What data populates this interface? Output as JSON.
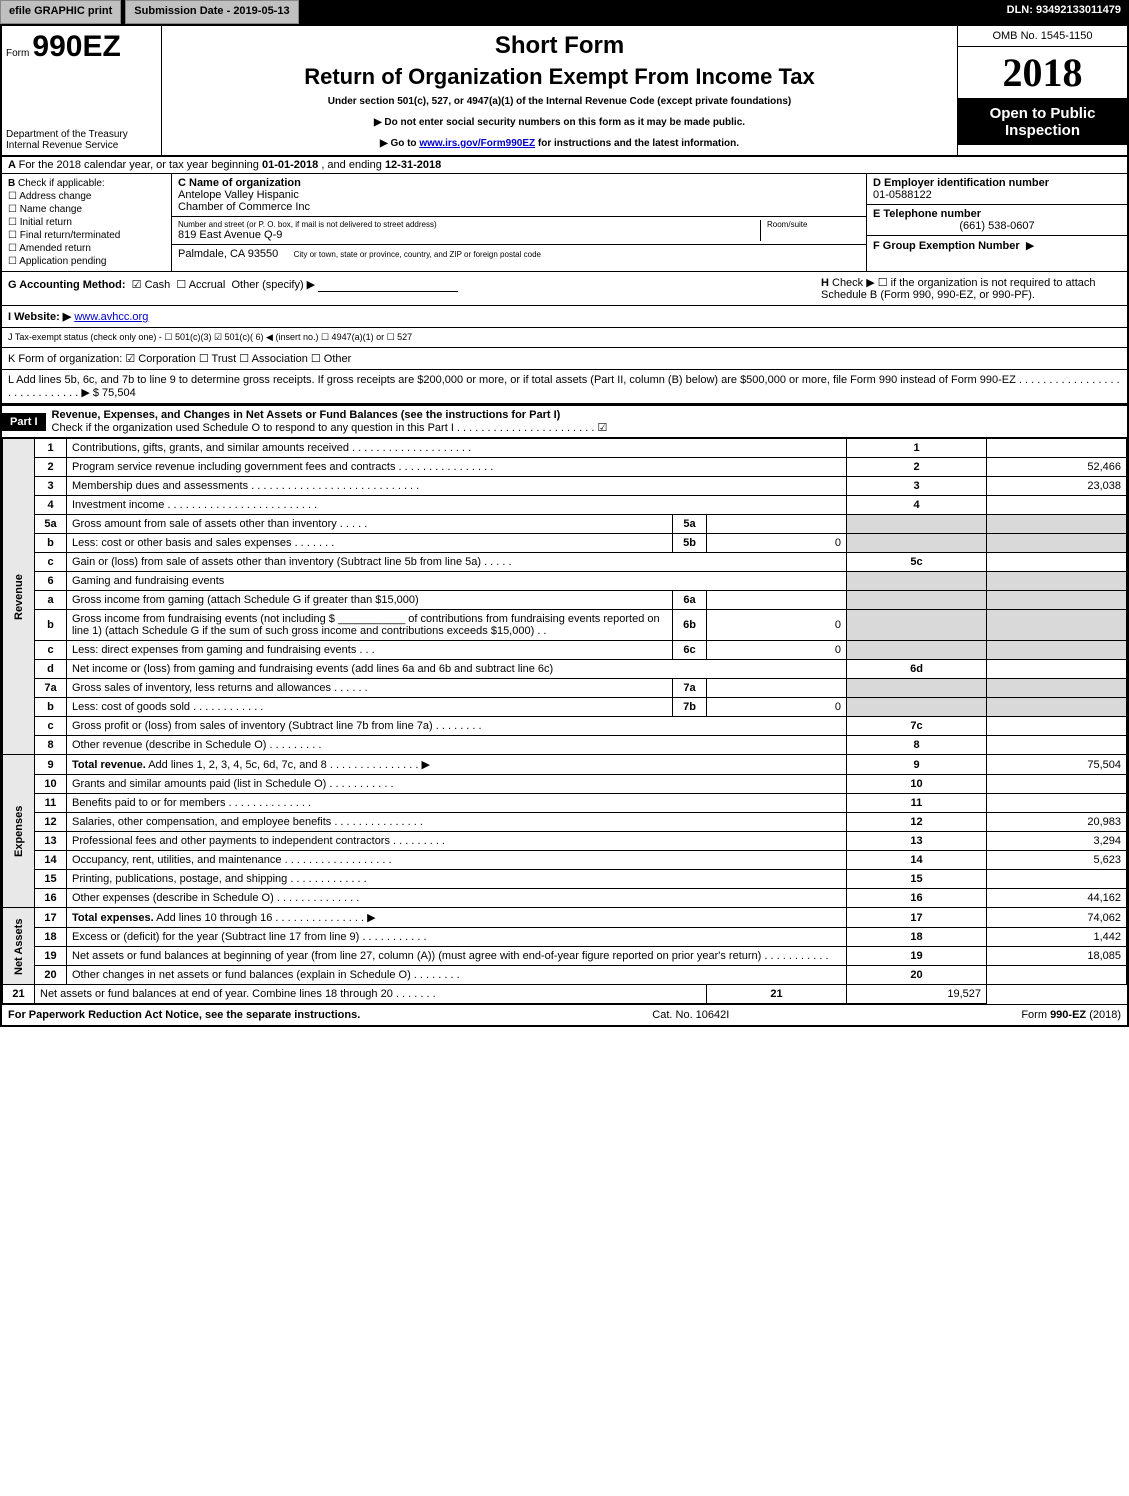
{
  "topbar": {
    "efile": "efile GRAPHIC print",
    "submission": "Submission Date - 2019-05-13",
    "dln": "DLN: 93492133011479"
  },
  "header": {
    "form_prefix": "Form",
    "form_num": "990EZ",
    "short": "Short Form",
    "title": "Return of Organization Exempt From Income Tax",
    "under": "Under section 501(c), 527, or 4947(a)(1) of the Internal Revenue Code (except private foundations)",
    "arrow1": "▶ Do not enter social security numbers on this form as it may be made public.",
    "arrow2_pre": "▶ Go to ",
    "arrow2_link": "www.irs.gov/Form990EZ",
    "arrow2_post": " for instructions and the latest information.",
    "dept1": "Department of the Treasury",
    "dept2": "Internal Revenue Service",
    "omb": "OMB No. 1545-1150",
    "year": "2018",
    "open1": "Open to Public",
    "open2": "Inspection"
  },
  "A": {
    "text_pre": "For the 2018 calendar year, or tax year beginning ",
    "begin": "01-01-2018",
    "mid": ", and ending ",
    "end": "12-31-2018"
  },
  "B": {
    "label": "Check if applicable:",
    "items": [
      "Address change",
      "Name change",
      "Initial return",
      "Final return/terminated",
      "Amended return",
      "Application pending"
    ]
  },
  "C": {
    "label": "C Name of organization",
    "name1": "Antelope Valley Hispanic",
    "name2": "Chamber of Commerce Inc",
    "street_label": "Number and street (or P. O. box, if mail is not delivered to street address)",
    "room_label": "Room/suite",
    "street": "819 East Avenue Q-9",
    "city_label": "City or town, state or province, country, and ZIP or foreign postal code",
    "city": "Palmdale, CA  93550"
  },
  "D": {
    "label": "D Employer identification number",
    "value": "01-0588122"
  },
  "E": {
    "label": "E Telephone number",
    "value": "(661) 538-0607"
  },
  "F": {
    "label": "F Group Exemption Number",
    "arrow": "▶"
  },
  "G": {
    "label": "G Accounting Method:",
    "cash": "Cash",
    "accrual": "Accrual",
    "other": "Other (specify) ▶"
  },
  "H": {
    "text": "Check ▶ ☐ if the organization is not required to attach Schedule B (Form 990, 990-EZ, or 990-PF)."
  },
  "I": {
    "label": "I Website: ▶",
    "value": "www.avhcc.org"
  },
  "J": {
    "text": "J Tax-exempt status (check only one) - ☐ 501(c)(3) ☑ 501(c)( 6) ◀ (insert no.) ☐ 4947(a)(1) or ☐ 527"
  },
  "K": {
    "text": "K Form of organization: ☑ Corporation  ☐ Trust  ☐ Association  ☐ Other"
  },
  "L": {
    "text": "L Add lines 5b, 6c, and 7b to line 9 to determine gross receipts. If gross receipts are $200,000 or more, or if total assets (Part II, column (B) below) are $500,000 or more, file Form 990 instead of Form 990-EZ  .  .  .  .  .  .  .  .  .  .  .  .  .  .  .  .  .  .  .  .  .  .  .  .  .  .  .  .  .  ▶ $ ",
    "value": "75,504"
  },
  "part1": {
    "bar": "Part I",
    "title": "Revenue, Expenses, and Changes in Net Assets or Fund Balances (see the instructions for Part I)",
    "check": "Check if the organization used Schedule O to respond to any question in this Part I .  .  .  .  .  .  .  .  .  .  .  .  .  .  .  .  .  .  .  .  .  .  .  ☑"
  },
  "sections": {
    "revenue": "Revenue",
    "expenses": "Expenses",
    "netassets": "Net Assets"
  },
  "rows": [
    {
      "n": "1",
      "d": "Contributions, gifts, grants, and similar amounts received  .  .  .  .  .  .  .  .  .  .  .  .  .  .  .  .  .  .  .  .",
      "b": "1",
      "a": ""
    },
    {
      "n": "2",
      "d": "Program service revenue including government fees and contracts  .  .  .  .  .  .  .  .  .  .  .  .  .  .  .  .",
      "b": "2",
      "a": "52,466"
    },
    {
      "n": "3",
      "d": "Membership dues and assessments  .  .  .  .  .  .  .  .  .  .  .  .  .  .  .  .  .  .  .  .  .  .  .  .  .  .  .  .",
      "b": "3",
      "a": "23,038"
    },
    {
      "n": "4",
      "d": "Investment income  .  .  .  .  .  .  .  .  .  .  .  .  .  .  .  .  .  .  .  .  .  .  .  .  .",
      "b": "4",
      "a": ""
    },
    {
      "n": "5a",
      "d": "Gross amount from sale of assets other than inventory  .  .  .  .  .",
      "ib": "5a",
      "iv": ""
    },
    {
      "n": "b",
      "d": "Less: cost or other basis and sales expenses  .  .  .  .  .  .  .",
      "ib": "5b",
      "iv": "0"
    },
    {
      "n": "c",
      "d": "Gain or (loss) from sale of assets other than inventory (Subtract line 5b from line 5a)          .  .  .  .  .",
      "b": "5c",
      "a": ""
    },
    {
      "n": "6",
      "d": "Gaming and fundraising events",
      "shade": true
    },
    {
      "n": "a",
      "d": "Gross income from gaming (attach Schedule G if greater than $15,000)",
      "ib": "6a",
      "iv": ""
    },
    {
      "n": "b",
      "d": "Gross income from fundraising events (not including $ ___________ of contributions from fundraising events reported on line 1) (attach Schedule G if the sum of such gross income and contributions exceeds $15,000)          .  .",
      "ib": "6b",
      "iv": "0"
    },
    {
      "n": "c",
      "d": "Less: direct expenses from gaming and fundraising events          .  .  .",
      "ib": "6c",
      "iv": "0"
    },
    {
      "n": "d",
      "d": "Net income or (loss) from gaming and fundraising events (add lines 6a and 6b and subtract line 6c)",
      "b": "6d",
      "a": ""
    },
    {
      "n": "7a",
      "d": "Gross sales of inventory, less returns and allowances          .  .  .  .  .  .",
      "ib": "7a",
      "iv": ""
    },
    {
      "n": "b",
      "d": "Less: cost of goods sold                              .  .  .  .  .  .  .  .  .  .  .  .",
      "ib": "7b",
      "iv": "0"
    },
    {
      "n": "c",
      "d": "Gross profit or (loss) from sales of inventory (Subtract line 7b from line 7a)          .  .  .  .  .  .  .  .",
      "b": "7c",
      "a": ""
    },
    {
      "n": "8",
      "d": "Other revenue (describe in Schedule O)                                    .  .  .  .  .  .  .  .  .",
      "b": "8",
      "a": ""
    },
    {
      "n": "9",
      "d": "Total revenue. Add lines 1, 2, 3, 4, 5c, 6d, 7c, and 8          .  .  .  .  .  .  .  .  .  .  .  .  .  .  .  ▶",
      "b": "9",
      "a": "75,504",
      "bold": true
    },
    {
      "n": "10",
      "d": "Grants and similar amounts paid (list in Schedule O)                    .  .  .  .  .  .  .  .  .  .  .",
      "b": "10",
      "a": ""
    },
    {
      "n": "11",
      "d": "Benefits paid to or for members                              .  .  .  .  .  .  .  .  .  .  .  .  .  .",
      "b": "11",
      "a": ""
    },
    {
      "n": "12",
      "d": "Salaries, other compensation, and employee benefits          .  .  .  .  .  .  .  .  .  .  .  .  .  .  .",
      "b": "12",
      "a": "20,983"
    },
    {
      "n": "13",
      "d": "Professional fees and other payments to independent contractors                    .  .  .  .  .  .  .  .  .",
      "b": "13",
      "a": "3,294"
    },
    {
      "n": "14",
      "d": "Occupancy, rent, utilities, and maintenance          .  .  .  .  .  .  .  .  .  .  .  .  .  .  .  .  .  .",
      "b": "14",
      "a": "5,623"
    },
    {
      "n": "15",
      "d": "Printing, publications, postage, and shipping                    .  .  .  .  .  .  .  .  .  .  .  .  .",
      "b": "15",
      "a": ""
    },
    {
      "n": "16",
      "d": "Other expenses (describe in Schedule O)                    .  .  .  .  .  .  .  .  .  .  .  .  .  .",
      "b": "16",
      "a": "44,162"
    },
    {
      "n": "17",
      "d": "Total expenses. Add lines 10 through 16                    .  .  .  .  .  .  .  .  .  .  .  .  .  .  .  ▶",
      "b": "17",
      "a": "74,062",
      "bold": true
    },
    {
      "n": "18",
      "d": "Excess or (deficit) for the year (Subtract line 17 from line 9)                    .  .  .  .  .  .  .  .  .  .  .",
      "b": "18",
      "a": "1,442"
    },
    {
      "n": "19",
      "d": "Net assets or fund balances at beginning of year (from line 27, column (A)) (must agree with end-of-year figure reported on prior year's return)                    .  .  .  .  .  .  .  .  .  .  .",
      "b": "19",
      "a": "18,085"
    },
    {
      "n": "20",
      "d": "Other changes in net assets or fund balances (explain in Schedule O)                    .  .  .  .  .  .  .  .",
      "b": "20",
      "a": ""
    },
    {
      "n": "21",
      "d": "Net assets or fund balances at end of year. Combine lines 18 through 20                    .  .  .  .  .  .  .",
      "b": "21",
      "a": "19,527"
    }
  ],
  "footer": {
    "left": "For Paperwork Reduction Act Notice, see the separate instructions.",
    "mid": "Cat. No. 10642I",
    "right": "Form 990-EZ (2018)"
  }
}
